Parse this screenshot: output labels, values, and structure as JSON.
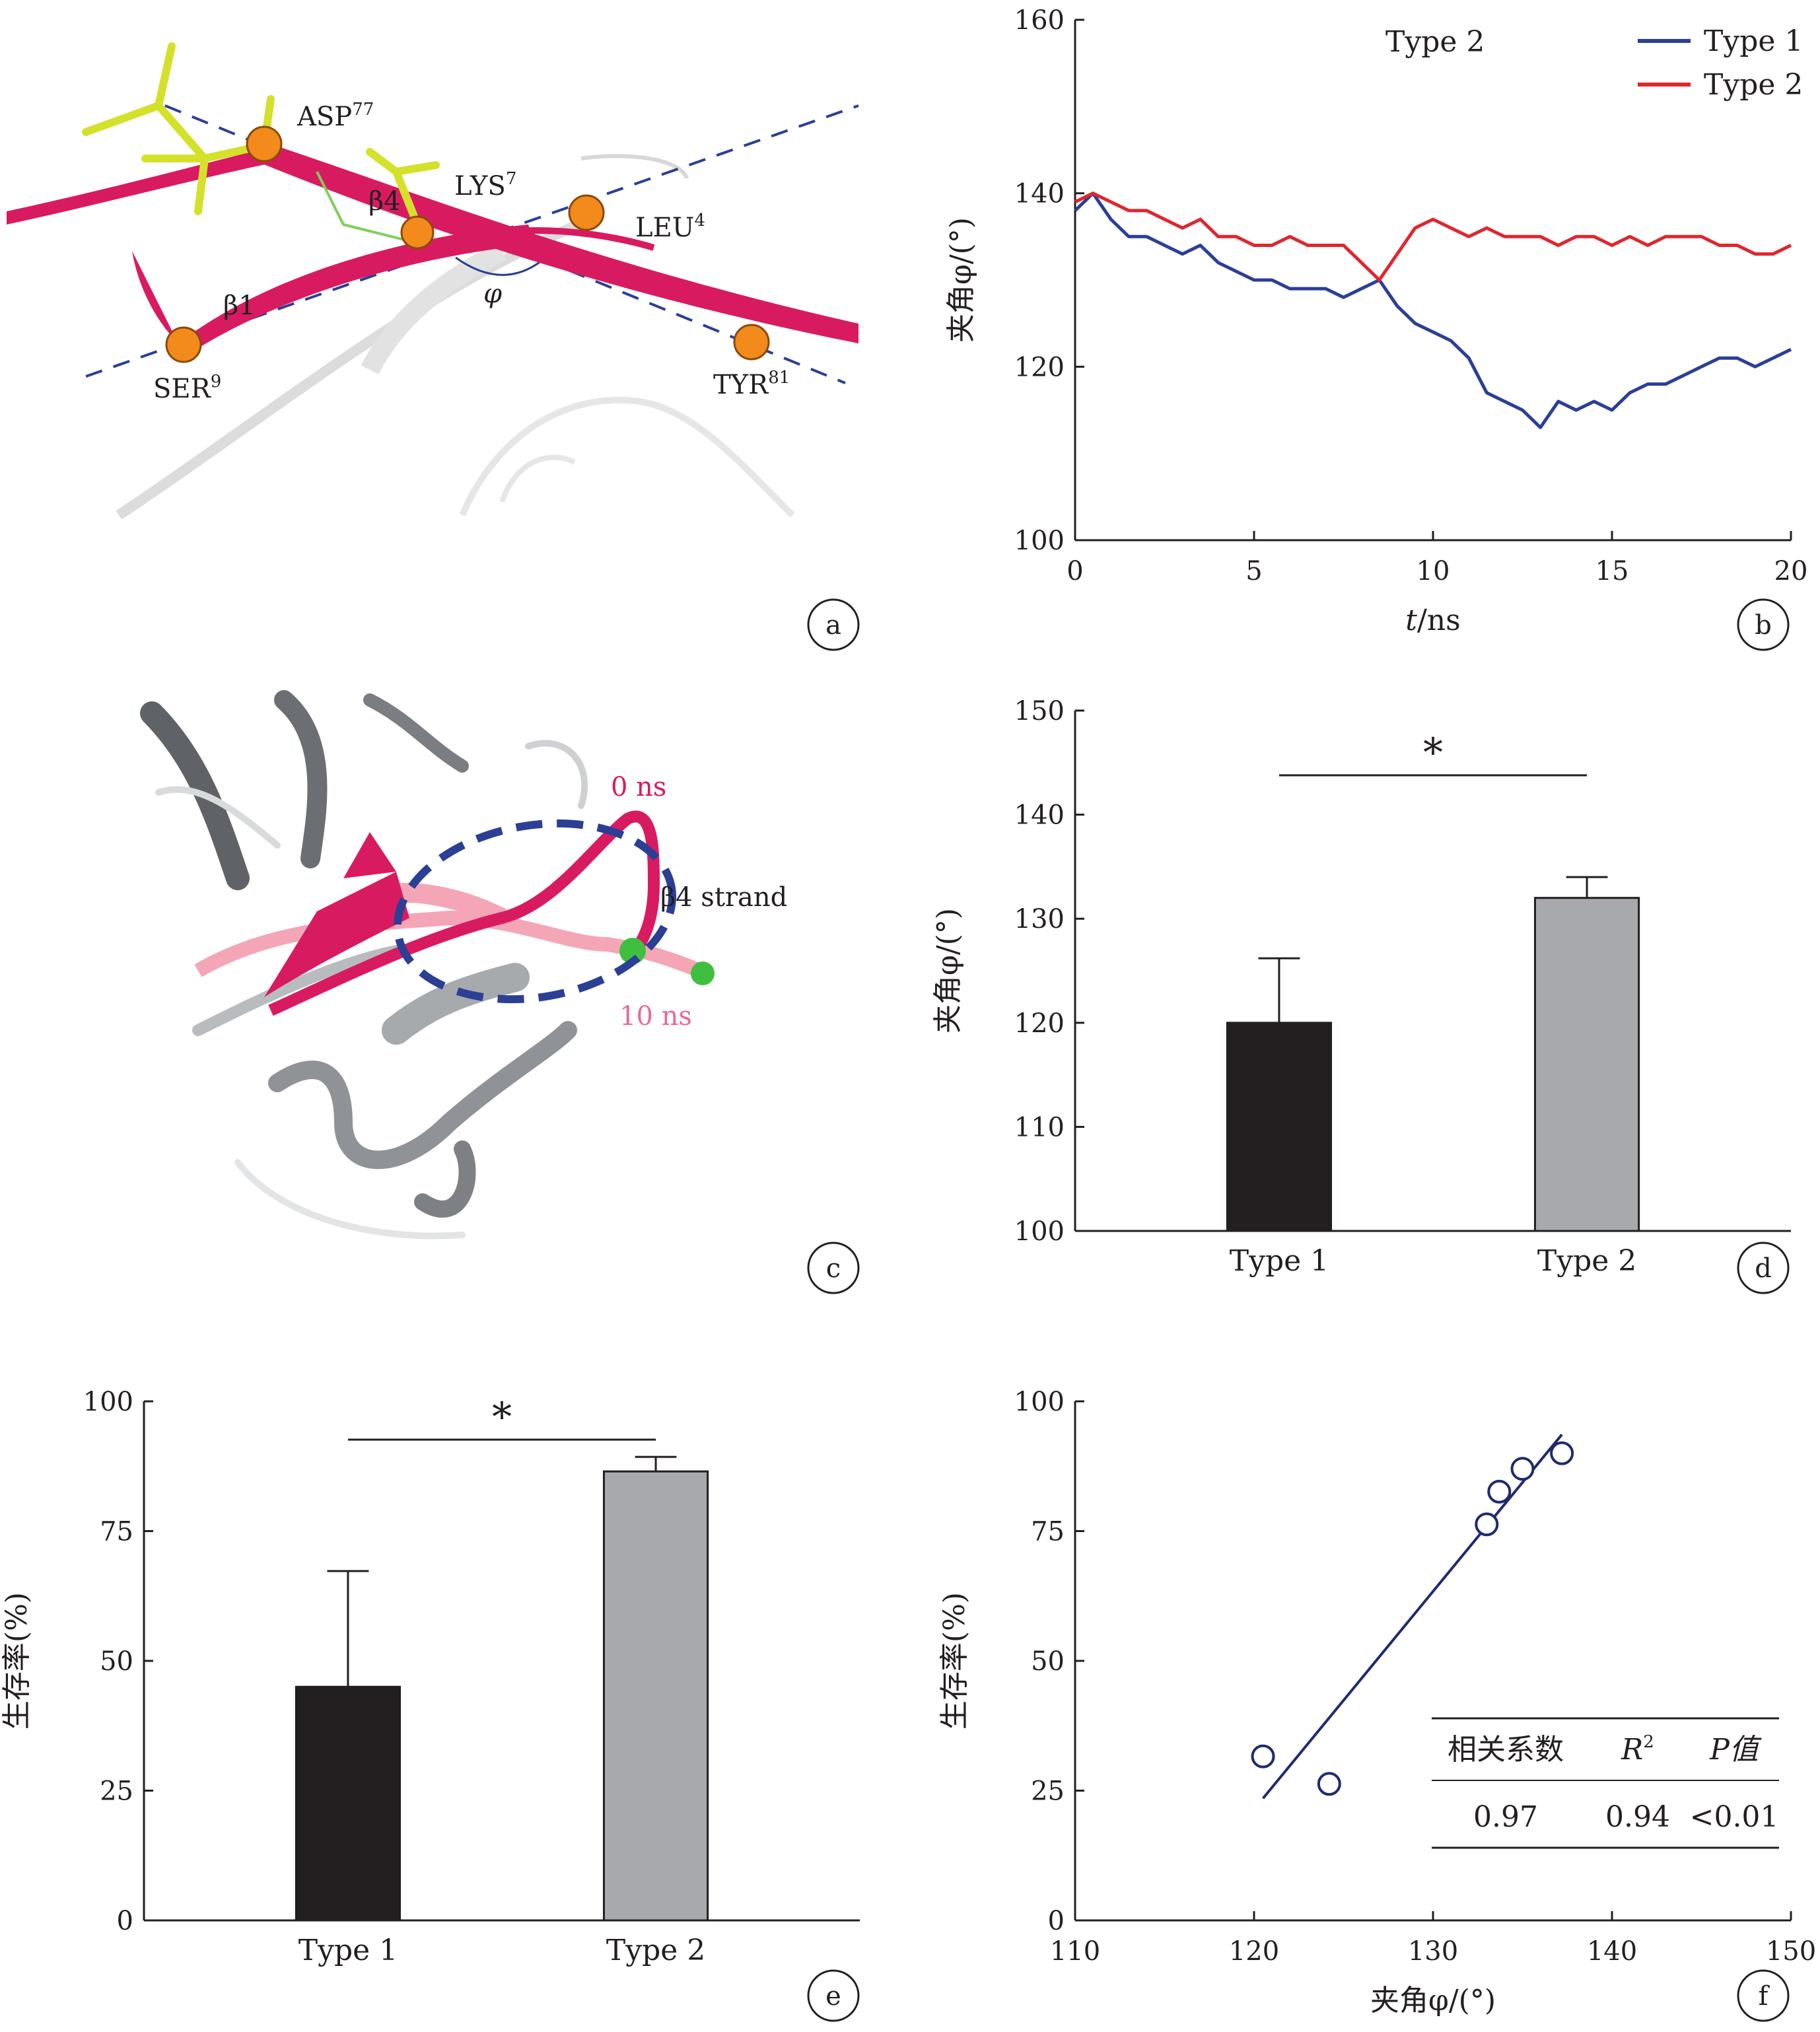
{
  "panel_labels": [
    "a",
    "b",
    "c",
    "d",
    "e",
    "f"
  ],
  "panel_a": {
    "residues": [
      "ASP",
      "LYS",
      "LEU",
      "SER",
      "TYR"
    ],
    "residue_numbers": [
      "77",
      "7",
      "4",
      "9",
      "81"
    ],
    "strands": [
      "β4",
      "β1"
    ],
    "angle_symbol": "φ"
  },
  "panel_c": {
    "time_start": "0 ns",
    "time_end": "10 ns",
    "strand_label": "β4 strand"
  },
  "colors": {
    "type1": "#2b3f95",
    "type2": "#e0262e",
    "bar_type1": "#231f20",
    "bar_type2": "#a7a9ac",
    "ribbon": "#d81b60",
    "ribbon_light": "#f4a6b7",
    "atom": "#f28a1c",
    "stick": "#d4e12a"
  },
  "chart_data": [
    {
      "panel": "b",
      "type": "line",
      "xlabel_var": "t",
      "xlabel_unit": "/ns",
      "ylabel": "夹角φ/(°)",
      "xlim": [
        0,
        20
      ],
      "ylim": [
        100,
        160
      ],
      "xticks": [
        0,
        5,
        10,
        15,
        20
      ],
      "yticks": [
        100,
        120,
        140,
        160
      ],
      "annotation": "Type 2",
      "legend_position": "top-right",
      "series": [
        {
          "name": "Type 1",
          "x": [
            0,
            0.5,
            1,
            1.5,
            2,
            2.5,
            3,
            3.5,
            4,
            4.5,
            5,
            5.5,
            6,
            6.5,
            7,
            7.5,
            8,
            8.5,
            9,
            9.5,
            10,
            10.5,
            11,
            11.5,
            12,
            12.5,
            13,
            13.5,
            14,
            14.5,
            15,
            15.5,
            16,
            16.5,
            17,
            17.5,
            18,
            18.5,
            19,
            19.5,
            20
          ],
          "y": [
            138,
            140,
            137,
            135,
            135,
            134,
            133,
            134,
            132,
            131,
            130,
            130,
            129,
            129,
            129,
            128,
            129,
            130,
            127,
            125,
            124,
            123,
            121,
            117,
            116,
            115,
            113,
            116,
            115,
            116,
            115,
            117,
            118,
            118,
            119,
            120,
            121,
            121,
            120,
            121,
            122
          ]
        },
        {
          "name": "Type 2",
          "x": [
            0,
            0.5,
            1,
            1.5,
            2,
            2.5,
            3,
            3.5,
            4,
            4.5,
            5,
            5.5,
            6,
            6.5,
            7,
            7.5,
            8,
            8.5,
            9,
            9.5,
            10,
            10.5,
            11,
            11.5,
            12,
            12.5,
            13,
            13.5,
            14,
            14.5,
            15,
            15.5,
            16,
            16.5,
            17,
            17.5,
            18,
            18.5,
            19,
            19.5,
            20
          ],
          "y": [
            139,
            140,
            139,
            138,
            138,
            137,
            136,
            137,
            135,
            135,
            134,
            134,
            135,
            134,
            134,
            134,
            132,
            130,
            133,
            136,
            137,
            136,
            135,
            136,
            135,
            135,
            135,
            134,
            135,
            135,
            134,
            135,
            134,
            135,
            135,
            135,
            134,
            134,
            133,
            133,
            134
          ]
        }
      ]
    },
    {
      "panel": "d",
      "type": "bar",
      "ylabel": "夹角φ/(°)",
      "categories": [
        "Type 1",
        "Type 2"
      ],
      "values": [
        120,
        132
      ],
      "errors": [
        6.2,
        2.0
      ],
      "ylim": [
        100,
        150
      ],
      "yticks": [
        100,
        110,
        120,
        130,
        140,
        150
      ],
      "significance": "*"
    },
    {
      "panel": "e",
      "type": "bar",
      "ylabel": "生存率(%)",
      "categories": [
        "Type 1",
        "Type 2"
      ],
      "values": [
        45,
        86.5
      ],
      "errors": [
        22.3,
        2.8
      ],
      "ylim": [
        0,
        100
      ],
      "yticks": [
        0,
        25,
        50,
        75,
        100
      ],
      "significance": "*"
    },
    {
      "panel": "f",
      "type": "scatter",
      "xlabel": "夹角φ/(°)",
      "ylabel": "生存率(%)",
      "xlim": [
        110,
        150
      ],
      "ylim": [
        0,
        100
      ],
      "xticks": [
        110,
        120,
        130,
        140,
        150
      ],
      "yticks": [
        0,
        25,
        50,
        75,
        100
      ],
      "x": [
        120.5,
        124.2,
        133,
        133.7,
        135,
        137.2
      ],
      "y": [
        31.6,
        26.3,
        76.3,
        82.6,
        87,
        90
      ],
      "fit_line": {
        "x": [
          120.5,
          137.2
        ],
        "y": [
          23.5,
          93.6
        ]
      },
      "stats_table": {
        "headers": [
          "相关系数",
          "R",
          "P值"
        ],
        "header_sup": "2",
        "values": [
          "0.97",
          "0.94",
          "<0.01"
        ]
      }
    }
  ]
}
